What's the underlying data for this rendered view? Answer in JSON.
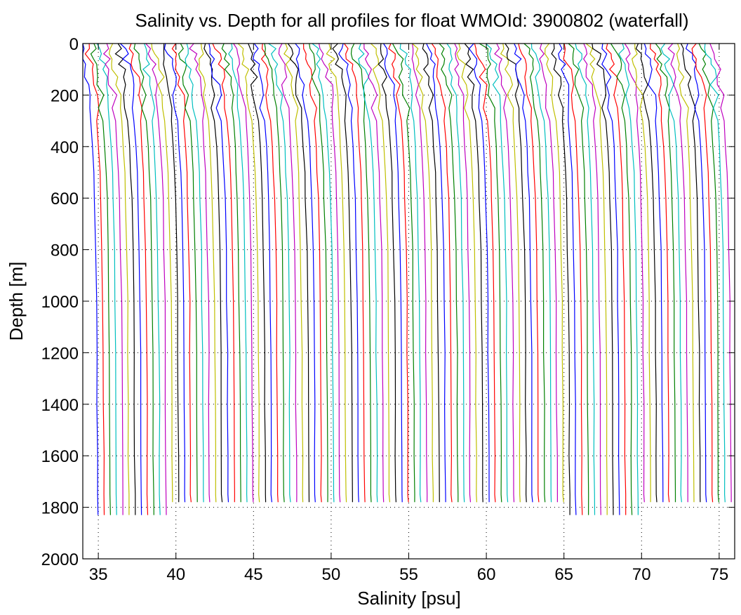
{
  "chart_data": {
    "type": "line",
    "title": "Salinity vs. Depth for all profiles for float WMOId: 3900802 (waterfall)",
    "xlabel": "Salinity [psu]",
    "ylabel": "Depth [m]",
    "xlim": [
      34,
      76
    ],
    "ylim": [
      0,
      2000
    ],
    "y_reversed": true,
    "grid": true,
    "x_ticks": [
      35,
      40,
      45,
      50,
      55,
      60,
      65,
      70,
      75
    ],
    "y_ticks": [
      0,
      200,
      400,
      600,
      800,
      1000,
      1200,
      1400,
      1600,
      1800,
      2000
    ],
    "colors": [
      "#0000ff",
      "#ff0000",
      "#008000",
      "#00bfbf",
      "#bf00bf",
      "#bfbf00",
      "#000000"
    ],
    "waterfall": {
      "profile_count": 103,
      "first_deep_salinity": 35.0,
      "offset_step": 0.4,
      "surface_offset": -1.0,
      "max_depths": [
        1780,
        1830
      ],
      "depth_levels": [
        0,
        20,
        40,
        60,
        80,
        100,
        130,
        160,
        200,
        250,
        300,
        400,
        500,
        600,
        800,
        1000,
        1200,
        1400,
        1600,
        1750
      ]
    }
  }
}
